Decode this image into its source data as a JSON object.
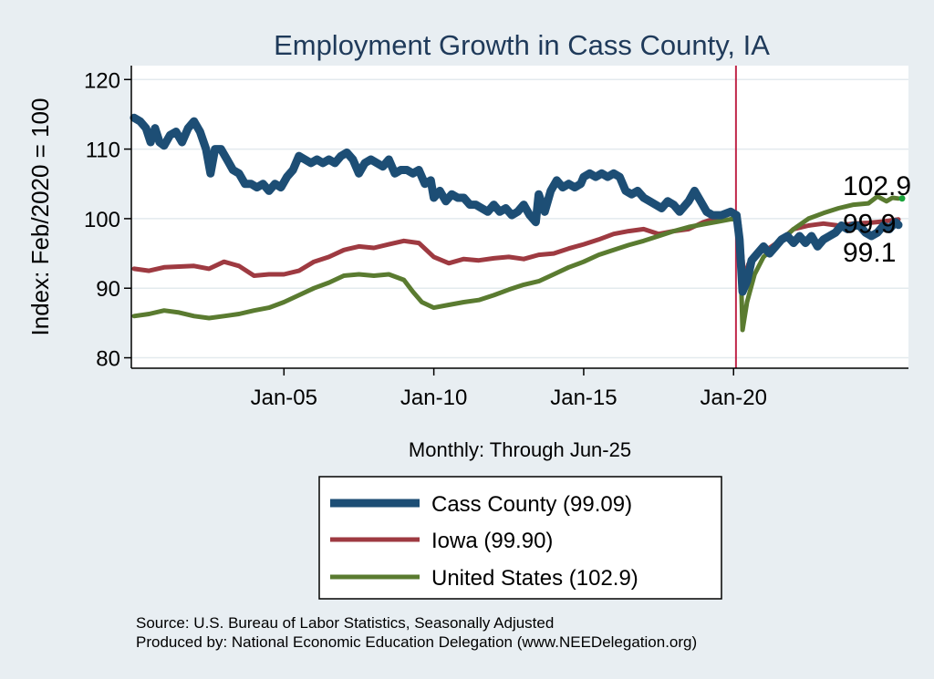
{
  "chart_data": {
    "type": "line",
    "title": "Employment Growth in Cass  County, IA",
    "xlabel": "Monthly: Through Jun-25",
    "ylabel": "Index: Feb/2020 = 100",
    "x_range": [
      2000.0,
      2025.5
    ],
    "ylim": [
      78.5,
      122
    ],
    "yticks": [
      80,
      90,
      100,
      110,
      120
    ],
    "xticks": [
      {
        "value": 2005,
        "label": "Jan-05"
      },
      {
        "value": 2010,
        "label": "Jan-10"
      },
      {
        "value": 2015,
        "label": "Jan-15"
      },
      {
        "value": 2020,
        "label": "Jan-20"
      }
    ],
    "reference_line": {
      "x": 2020.08,
      "color": "#c0284a"
    },
    "grid": true,
    "series": [
      {
        "name": "Cass  County",
        "legend": "Cass  County (99.09)",
        "color": "#1d4e75",
        "width": 9,
        "end_label": "99.1",
        "points": [
          [
            2000.0,
            114.5
          ],
          [
            2000.2,
            114.0
          ],
          [
            2000.4,
            113.0
          ],
          [
            2000.55,
            111.0
          ],
          [
            2000.7,
            113.0
          ],
          [
            2000.85,
            111.0
          ],
          [
            2001.0,
            110.5
          ],
          [
            2001.2,
            112.0
          ],
          [
            2001.4,
            112.5
          ],
          [
            2001.6,
            111.0
          ],
          [
            2001.8,
            113.0
          ],
          [
            2002.0,
            114.0
          ],
          [
            2002.2,
            112.5
          ],
          [
            2002.4,
            110.0
          ],
          [
            2002.55,
            106.5
          ],
          [
            2002.7,
            110.0
          ],
          [
            2002.9,
            110.0
          ],
          [
            2003.1,
            108.5
          ],
          [
            2003.3,
            107.0
          ],
          [
            2003.5,
            106.5
          ],
          [
            2003.7,
            105.0
          ],
          [
            2003.9,
            105.0
          ],
          [
            2004.1,
            104.5
          ],
          [
            2004.3,
            105.0
          ],
          [
            2004.5,
            104.0
          ],
          [
            2004.7,
            105.0
          ],
          [
            2004.9,
            104.5
          ],
          [
            2005.1,
            106.0
          ],
          [
            2005.3,
            107.0
          ],
          [
            2005.5,
            109.0
          ],
          [
            2005.7,
            108.5
          ],
          [
            2005.9,
            108.0
          ],
          [
            2006.1,
            108.5
          ],
          [
            2006.3,
            108.0
          ],
          [
            2006.5,
            108.5
          ],
          [
            2006.7,
            108.0
          ],
          [
            2006.9,
            109.0
          ],
          [
            2007.1,
            109.5
          ],
          [
            2007.3,
            108.5
          ],
          [
            2007.5,
            106.5
          ],
          [
            2007.7,
            108.0
          ],
          [
            2007.9,
            108.5
          ],
          [
            2008.1,
            108.0
          ],
          [
            2008.3,
            107.5
          ],
          [
            2008.5,
            108.5
          ],
          [
            2008.7,
            106.5
          ],
          [
            2008.9,
            107.0
          ],
          [
            2009.1,
            107.0
          ],
          [
            2009.3,
            106.5
          ],
          [
            2009.5,
            107.0
          ],
          [
            2009.7,
            105.0
          ],
          [
            2009.9,
            105.5
          ],
          [
            2010.0,
            103.0
          ],
          [
            2010.2,
            104.0
          ],
          [
            2010.4,
            102.5
          ],
          [
            2010.6,
            103.5
          ],
          [
            2010.8,
            103.0
          ],
          [
            2011.0,
            103.0
          ],
          [
            2011.2,
            102.0
          ],
          [
            2011.4,
            102.0
          ],
          [
            2011.6,
            101.5
          ],
          [
            2011.8,
            101.0
          ],
          [
            2012.0,
            102.0
          ],
          [
            2012.2,
            101.0
          ],
          [
            2012.4,
            101.5
          ],
          [
            2012.6,
            100.5
          ],
          [
            2012.8,
            101.0
          ],
          [
            2013.0,
            102.0
          ],
          [
            2013.2,
            100.5
          ],
          [
            2013.4,
            99.5
          ],
          [
            2013.5,
            103.5
          ],
          [
            2013.7,
            101.0
          ],
          [
            2013.9,
            104.0
          ],
          [
            2014.1,
            105.5
          ],
          [
            2014.3,
            104.5
          ],
          [
            2014.5,
            105.0
          ],
          [
            2014.7,
            104.5
          ],
          [
            2014.9,
            105.0
          ],
          [
            2015.0,
            106.0
          ],
          [
            2015.2,
            106.5
          ],
          [
            2015.4,
            106.0
          ],
          [
            2015.6,
            106.5
          ],
          [
            2015.8,
            106.0
          ],
          [
            2016.0,
            106.5
          ],
          [
            2016.2,
            106.0
          ],
          [
            2016.4,
            104.0
          ],
          [
            2016.6,
            103.5
          ],
          [
            2016.8,
            104.0
          ],
          [
            2017.0,
            103.0
          ],
          [
            2017.2,
            102.5
          ],
          [
            2017.4,
            102.0
          ],
          [
            2017.6,
            101.5
          ],
          [
            2017.8,
            102.5
          ],
          [
            2018.0,
            102.0
          ],
          [
            2018.2,
            101.0
          ],
          [
            2018.5,
            102.5
          ],
          [
            2018.7,
            104.0
          ],
          [
            2018.9,
            102.5
          ],
          [
            2019.1,
            101.0
          ],
          [
            2019.3,
            100.5
          ],
          [
            2019.6,
            100.5
          ],
          [
            2019.9,
            101.0
          ],
          [
            2020.1,
            100.5
          ],
          [
            2020.2,
            97.0
          ],
          [
            2020.3,
            89.5
          ],
          [
            2020.45,
            91.0
          ],
          [
            2020.6,
            94.0
          ],
          [
            2020.8,
            95.0
          ],
          [
            2021.0,
            96.0
          ],
          [
            2021.2,
            95.0
          ],
          [
            2021.4,
            96.0
          ],
          [
            2021.6,
            97.0
          ],
          [
            2021.8,
            97.5
          ],
          [
            2022.0,
            96.5
          ],
          [
            2022.2,
            97.5
          ],
          [
            2022.4,
            96.5
          ],
          [
            2022.6,
            97.5
          ],
          [
            2022.8,
            96.0
          ],
          [
            2023.0,
            97.0
          ],
          [
            2023.2,
            97.5
          ],
          [
            2023.4,
            98.0
          ],
          [
            2023.6,
            99.0
          ],
          [
            2023.8,
            98.5
          ],
          [
            2024.0,
            99.0
          ],
          [
            2024.2,
            99.0
          ],
          [
            2024.4,
            98.0
          ],
          [
            2024.6,
            97.5
          ],
          [
            2024.8,
            98.0
          ],
          [
            2025.0,
            99.0
          ],
          [
            2025.2,
            98.5
          ],
          [
            2025.4,
            99.5
          ],
          [
            2025.5,
            99.1
          ]
        ]
      },
      {
        "name": "Iowa",
        "legend": "Iowa (99.90)",
        "color": "#9e3a41",
        "width": 5,
        "end_label": "99.9",
        "points": [
          [
            2000.0,
            92.8
          ],
          [
            2000.5,
            92.5
          ],
          [
            2001.0,
            93.0
          ],
          [
            2002.0,
            93.2
          ],
          [
            2002.5,
            92.8
          ],
          [
            2003.0,
            93.8
          ],
          [
            2003.5,
            93.2
          ],
          [
            2004.0,
            91.8
          ],
          [
            2004.5,
            92.0
          ],
          [
            2005.0,
            92.0
          ],
          [
            2005.5,
            92.5
          ],
          [
            2006.0,
            93.8
          ],
          [
            2006.5,
            94.5
          ],
          [
            2007.0,
            95.5
          ],
          [
            2007.5,
            96.0
          ],
          [
            2008.0,
            95.8
          ],
          [
            2008.5,
            96.3
          ],
          [
            2009.0,
            96.8
          ],
          [
            2009.5,
            96.5
          ],
          [
            2010.0,
            94.5
          ],
          [
            2010.5,
            93.6
          ],
          [
            2011.0,
            94.2
          ],
          [
            2011.5,
            94.0
          ],
          [
            2012.0,
            94.3
          ],
          [
            2012.5,
            94.5
          ],
          [
            2013.0,
            94.2
          ],
          [
            2013.5,
            94.8
          ],
          [
            2014.0,
            95.0
          ],
          [
            2014.5,
            95.7
          ],
          [
            2015.0,
            96.3
          ],
          [
            2015.5,
            97.0
          ],
          [
            2016.0,
            97.8
          ],
          [
            2016.5,
            98.2
          ],
          [
            2017.0,
            98.5
          ],
          [
            2017.5,
            97.8
          ],
          [
            2018.0,
            98.2
          ],
          [
            2018.5,
            98.5
          ],
          [
            2019.0,
            99.5
          ],
          [
            2019.5,
            100.2
          ],
          [
            2020.0,
            100.8
          ],
          [
            2020.2,
            99.0
          ],
          [
            2020.35,
            91.5
          ],
          [
            2020.5,
            93.5
          ],
          [
            2020.8,
            95.0
          ],
          [
            2021.2,
            95.8
          ],
          [
            2021.6,
            97.0
          ],
          [
            2022.0,
            98.5
          ],
          [
            2022.5,
            99.0
          ],
          [
            2023.0,
            99.3
          ],
          [
            2023.5,
            99.0
          ],
          [
            2024.0,
            99.3
          ],
          [
            2024.5,
            99.4
          ],
          [
            2025.0,
            99.6
          ],
          [
            2025.5,
            99.9
          ]
        ]
      },
      {
        "name": "United States",
        "legend": "United States (102.9)",
        "color": "#5a7b30",
        "width": 5,
        "end_label": "102.9",
        "points": [
          [
            2000.0,
            86.0
          ],
          [
            2000.5,
            86.3
          ],
          [
            2001.0,
            86.8
          ],
          [
            2001.5,
            86.5
          ],
          [
            2002.0,
            86.0
          ],
          [
            2002.5,
            85.7
          ],
          [
            2003.0,
            86.0
          ],
          [
            2003.5,
            86.3
          ],
          [
            2004.0,
            86.8
          ],
          [
            2004.5,
            87.2
          ],
          [
            2005.0,
            88.0
          ],
          [
            2005.5,
            89.0
          ],
          [
            2006.0,
            90.0
          ],
          [
            2006.5,
            90.8
          ],
          [
            2007.0,
            91.8
          ],
          [
            2007.5,
            92.0
          ],
          [
            2008.0,
            91.8
          ],
          [
            2008.5,
            92.0
          ],
          [
            2009.0,
            91.2
          ],
          [
            2009.3,
            89.5
          ],
          [
            2009.6,
            88.0
          ],
          [
            2010.0,
            87.2
          ],
          [
            2010.5,
            87.6
          ],
          [
            2011.0,
            88.0
          ],
          [
            2011.5,
            88.3
          ],
          [
            2012.0,
            89.0
          ],
          [
            2012.5,
            89.8
          ],
          [
            2013.0,
            90.5
          ],
          [
            2013.5,
            91.0
          ],
          [
            2014.0,
            92.0
          ],
          [
            2014.5,
            93.0
          ],
          [
            2015.0,
            93.8
          ],
          [
            2015.5,
            94.8
          ],
          [
            2016.0,
            95.5
          ],
          [
            2016.5,
            96.2
          ],
          [
            2017.0,
            96.8
          ],
          [
            2017.5,
            97.5
          ],
          [
            2018.0,
            98.2
          ],
          [
            2018.5,
            98.8
          ],
          [
            2019.0,
            99.2
          ],
          [
            2019.5,
            99.6
          ],
          [
            2020.0,
            100.0
          ],
          [
            2020.2,
            99.0
          ],
          [
            2020.3,
            84.0
          ],
          [
            2020.45,
            88.0
          ],
          [
            2020.7,
            92.0
          ],
          [
            2021.0,
            94.5
          ],
          [
            2021.5,
            96.5
          ],
          [
            2022.0,
            98.5
          ],
          [
            2022.5,
            100.0
          ],
          [
            2023.0,
            100.8
          ],
          [
            2023.5,
            101.5
          ],
          [
            2024.0,
            102.0
          ],
          [
            2024.5,
            102.2
          ],
          [
            2024.8,
            103.2
          ],
          [
            2025.1,
            102.5
          ],
          [
            2025.3,
            103.0
          ],
          [
            2025.5,
            102.9
          ]
        ]
      }
    ]
  },
  "legend": {
    "entries": [
      "Cass  County (99.09)",
      "Iowa (99.90)",
      "United States (102.9)"
    ]
  },
  "source_note": {
    "line1": "Source: U.S. Bureau of Labor Statistics, Seasonally Adjusted",
    "line2": "Produced by: National Economic Education Delegation (www.NEEDelegation.org)"
  }
}
